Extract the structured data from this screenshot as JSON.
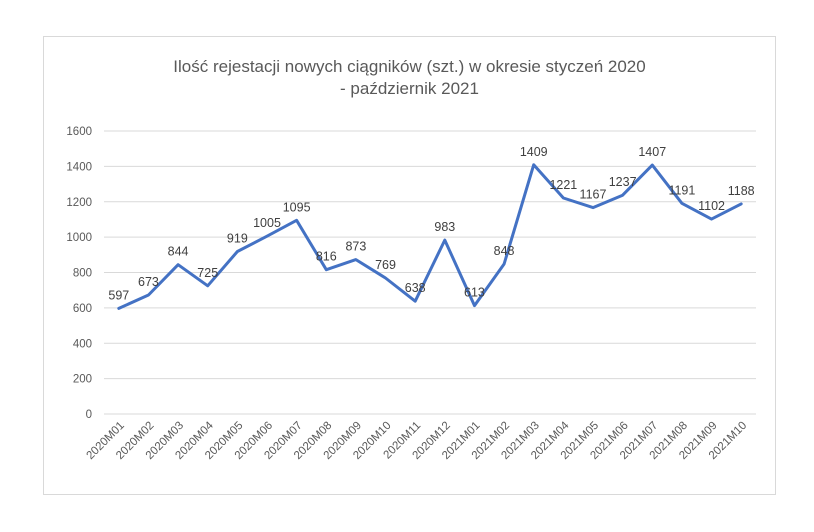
{
  "chart_data": {
    "type": "line",
    "title_line1": "Ilość rejestacji nowych ciągników (szt.) w okresie styczeń 2020",
    "title_line2": "- październik 2021",
    "categories": [
      "2020M01",
      "2020M02",
      "2020M03",
      "2020M04",
      "2020M05",
      "2020M06",
      "2020M07",
      "2020M08",
      "2020M09",
      "2020M10",
      "2020M11",
      "2020M12",
      "2021M01",
      "2021M02",
      "2021M03",
      "2021M04",
      "2021M05",
      "2021M06",
      "2021M07",
      "2021M08",
      "2021M09",
      "2021M10"
    ],
    "values": [
      597,
      673,
      844,
      725,
      919,
      1005,
      1095,
      816,
      873,
      769,
      638,
      983,
      613,
      848,
      1409,
      1221,
      1167,
      1237,
      1407,
      1191,
      1102,
      1188
    ],
    "ylim": [
      0,
      1600
    ],
    "yticks": [
      0,
      200,
      400,
      600,
      800,
      1000,
      1200,
      1400,
      1600
    ],
    "grid": true,
    "legend": "none",
    "line_color": "#4472c4",
    "data_labels": true
  }
}
